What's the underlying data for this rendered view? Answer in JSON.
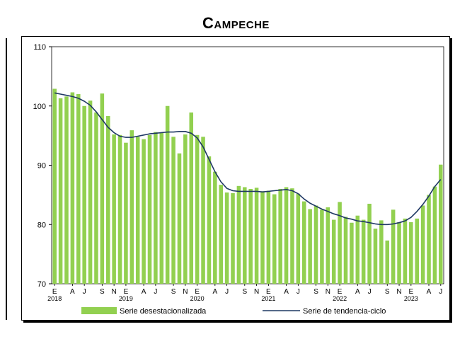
{
  "chart_data": {
    "type": "bar",
    "title": "Campeche",
    "ylim": [
      70,
      110
    ],
    "yticks": [
      70,
      80,
      90,
      100,
      110
    ],
    "xlabel": "",
    "ylabel": "",
    "month_tick_letters": [
      "E",
      "A",
      "J",
      "S",
      "N"
    ],
    "year_labels": [
      "2018",
      "2019",
      "2020",
      "2021",
      "2022",
      "2023"
    ],
    "x_tick_labels": [
      "E",
      "A",
      "J",
      "S",
      "N",
      "E",
      "A",
      "J",
      "S",
      "N",
      "E",
      "A",
      "J",
      "S",
      "N",
      "E",
      "A",
      "J",
      "S",
      "N",
      "E",
      "A",
      "J",
      "S",
      "N",
      "E",
      "A",
      "J"
    ],
    "x_tick_months": [
      0,
      3,
      5,
      8,
      10,
      12,
      15,
      17,
      20,
      22,
      24,
      27,
      29,
      32,
      34,
      36,
      39,
      41,
      44,
      46,
      48,
      51,
      53,
      56,
      58,
      60,
      63,
      65
    ],
    "legend": {
      "position": "bottom",
      "bar_label": "Serie desestacionalizada",
      "line_label": "Serie de tendencia-ciclo"
    },
    "colors": {
      "bar": "#92D050",
      "line": "#1F3864"
    },
    "x": [
      "2018-01",
      "2018-02",
      "2018-03",
      "2018-04",
      "2018-05",
      "2018-06",
      "2018-07",
      "2018-08",
      "2018-09",
      "2018-10",
      "2018-11",
      "2018-12",
      "2019-01",
      "2019-02",
      "2019-03",
      "2019-04",
      "2019-05",
      "2019-06",
      "2019-07",
      "2019-08",
      "2019-09",
      "2019-10",
      "2019-11",
      "2019-12",
      "2020-01",
      "2020-02",
      "2020-03",
      "2020-04",
      "2020-05",
      "2020-06",
      "2020-07",
      "2020-08",
      "2020-09",
      "2020-10",
      "2020-11",
      "2020-12",
      "2021-01",
      "2021-02",
      "2021-03",
      "2021-04",
      "2021-05",
      "2021-06",
      "2021-07",
      "2021-08",
      "2021-09",
      "2021-10",
      "2021-11",
      "2021-12",
      "2022-01",
      "2022-02",
      "2022-03",
      "2022-04",
      "2022-05",
      "2022-06",
      "2022-07",
      "2022-08",
      "2022-09",
      "2022-10",
      "2022-11",
      "2022-12",
      "2023-01",
      "2023-02",
      "2023-03",
      "2023-04",
      "2023-05",
      "2023-06"
    ],
    "series": [
      {
        "type": "bar",
        "values": [
          102.9,
          101.3,
          101.6,
          102.3,
          102.0,
          100.0,
          100.9,
          98.9,
          102.1,
          98.3,
          95.2,
          95.1,
          93.8,
          95.9,
          94.8,
          94.4,
          95.1,
          95.6,
          95.5,
          100.0,
          94.8,
          92.0,
          95.2,
          98.9,
          95.1,
          94.8,
          91.5,
          88.9,
          86.7,
          85.4,
          85.3,
          86.5,
          86.3,
          86.0,
          86.2,
          85.6,
          85.7,
          85.1,
          86.0,
          86.3,
          86.1,
          85.2,
          83.9,
          82.6,
          83.2,
          82.5,
          82.9,
          80.8,
          83.8,
          81.3,
          80.3,
          81.5,
          80.8,
          83.5,
          79.3,
          80.7,
          77.3,
          82.5,
          80.4,
          81.0,
          80.4,
          81.0,
          83.2,
          85.0,
          86.4,
          90.1
        ]
      },
      {
        "type": "line",
        "values": [
          102.2,
          102.0,
          101.8,
          101.6,
          101.3,
          100.8,
          100.1,
          99.0,
          97.7,
          96.4,
          95.5,
          94.9,
          94.7,
          94.7,
          94.9,
          95.1,
          95.3,
          95.4,
          95.5,
          95.6,
          95.6,
          95.7,
          95.7,
          95.4,
          94.6,
          93.1,
          91.0,
          88.9,
          87.2,
          86.1,
          85.7,
          85.6,
          85.6,
          85.6,
          85.6,
          85.5,
          85.6,
          85.7,
          85.8,
          85.9,
          85.7,
          85.2,
          84.3,
          83.6,
          83.1,
          82.6,
          82.2,
          81.8,
          81.5,
          81.1,
          80.9,
          80.6,
          80.5,
          80.3,
          80.1,
          80.0,
          80.0,
          80.1,
          80.3,
          80.6,
          81.2,
          82.2,
          83.4,
          84.8,
          86.4,
          87.6
        ]
      }
    ]
  }
}
